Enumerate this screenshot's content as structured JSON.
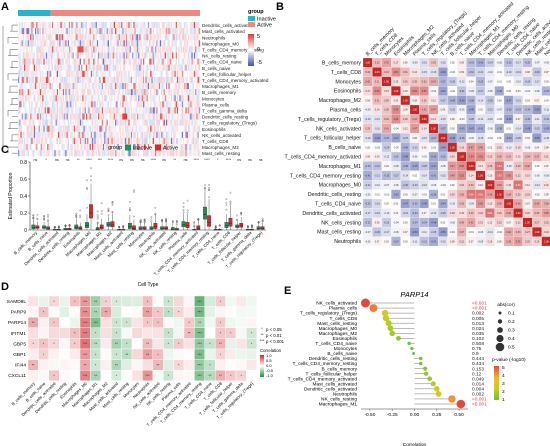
{
  "panels": {
    "A": {
      "label": "A"
    },
    "B": {
      "label": "B"
    },
    "C": {
      "label": "C"
    },
    "D": {
      "label": "D"
    },
    "E": {
      "label": "E"
    }
  },
  "chart_data": [
    {
      "panel": "A",
      "type": "heatmap",
      "title": "",
      "legend_title": "group",
      "groups": [
        {
          "name": "Inactive",
          "color": "#2bb3c9"
        },
        {
          "name": "Active",
          "color": "#ee8a80"
        }
      ],
      "group_split": 0.18,
      "colorbar_ticks": [
        5,
        0,
        -5
      ],
      "colors": {
        "high": "#e53935",
        "mid": "#ffffff",
        "low": "#3f51b5"
      },
      "rows": [
        "Dendritic_cells_activated",
        "Mast_cells_activated",
        "Neutrophils",
        "Macrophages_M0",
        "T_cells_CD4_memory_resting",
        "NK_cells_resting",
        "T_cells_CD4_naive",
        "B_cells_naive",
        "T_cells_follicular_helper",
        "T_cells_CD4_memory_activated",
        "Macrophages_M1",
        "B_cells_memory",
        "Monocytes",
        "Plasma_cells",
        "T_cells_gamma_delta",
        "Dendritic_cells_resting",
        "T_cells_regulatory_(Tregs)",
        "Eosinophils",
        "NK_cells_activated",
        "T_cells_CD8",
        "Macrophages_M2",
        "Mast_cells_resting"
      ]
    },
    {
      "panel": "B",
      "type": "heatmap",
      "title": "",
      "labels": [
        "B_cells_memory",
        "T_cells_CD8",
        "Monocytes",
        "Eosinophils",
        "Macrophages_M2",
        "Plasma_cells",
        "T_cells_regulatory_(Tregs)",
        "NK_cells_activated",
        "T_cells_follicular_helper",
        "B_cells_naive",
        "T_cells_CD4_memory_activated",
        "Macrophages_M1",
        "T_cells_CD4_memory_resting",
        "Macrophages_M0",
        "Dendritic_cells_resting",
        "T_cells_CD4_naive",
        "Dendritic_cells_activated",
        "NK_cells_resting",
        "Mast_cells_resting",
        "Neutrophils"
      ],
      "colorbar_ticks": [
        1,
        0.8,
        0.6,
        0.4,
        0.2,
        0,
        -0.2,
        -0.4,
        -0.6,
        -0.8,
        -1
      ],
      "colors": {
        "high": "#c62828",
        "mid": "#ffffff",
        "low": "#283593"
      }
    },
    {
      "panel": "C",
      "type": "box",
      "title": "",
      "xlabel": "Cell Type",
      "ylabel": "Estimated Proportion",
      "ylim": [
        0,
        0.8
      ],
      "yticks": [
        0,
        0.2,
        0.4,
        0.6,
        0.8
      ],
      "legend_title": "group",
      "series": [
        {
          "name": "Inactive",
          "color": "#1e8f5e"
        },
        {
          "name": "Active",
          "color": "#d62a2a"
        }
      ],
      "categories": [
        "B_cells_memory",
        "B_cells_naive",
        "Dendritic_cells_activated",
        "Dendritic_cells_resting",
        "Eosinophils",
        "Macrophages_M0",
        "Macrophages_M1",
        "Macrophages_M2",
        "Mast_cells_activated",
        "Mast_cells_resting",
        "Monocytes",
        "Neutrophils",
        "NK_cells_activated",
        "NK_cells_resting",
        "Plasma_cells",
        "T_cells_CD4_memory_activated",
        "T_cells_CD4_memory_resting",
        "T_cells_CD4_naive",
        "T_cells_CD8",
        "T_cells_follicular_helper",
        "T_cells_gamma_delta",
        "T_cells_regulatory_(Tregs)"
      ],
      "significance": [
        "ns",
        "*",
        "ns",
        "ns",
        "**",
        "****",
        "***",
        "****",
        "ns",
        "ns",
        "ns",
        "****",
        "ns",
        "**",
        "ns",
        "****",
        "****",
        "*",
        "****",
        "ns",
        "ns",
        "ns"
      ],
      "medians_inactive": [
        0.03,
        0.03,
        0.0,
        0.01,
        0.03,
        0.05,
        0.01,
        0.06,
        0.0,
        0.04,
        0.02,
        0.02,
        0.02,
        0.01,
        0.06,
        0.0,
        0.18,
        0.0,
        0.05,
        0.04,
        0.0,
        0.02
      ],
      "medians_active": [
        0.03,
        0.02,
        0.0,
        0.01,
        0.02,
        0.2,
        0.03,
        0.06,
        0.0,
        0.02,
        0.02,
        0.04,
        0.02,
        0.0,
        0.05,
        0.02,
        0.09,
        0.0,
        0.08,
        0.05,
        0.0,
        0.02
      ],
      "q3_inactive": [
        0.06,
        0.05,
        0.01,
        0.02,
        0.06,
        0.09,
        0.03,
        0.09,
        0.01,
        0.08,
        0.04,
        0.04,
        0.04,
        0.03,
        0.1,
        0.01,
        0.27,
        0.01,
        0.09,
        0.06,
        0.01,
        0.04
      ],
      "q3_active": [
        0.05,
        0.04,
        0.01,
        0.02,
        0.04,
        0.3,
        0.06,
        0.1,
        0.01,
        0.05,
        0.04,
        0.08,
        0.04,
        0.02,
        0.09,
        0.05,
        0.17,
        0.01,
        0.14,
        0.08,
        0.01,
        0.04
      ],
      "max_point": [
        0.2,
        0.2,
        0.05,
        0.06,
        0.25,
        0.8,
        0.32,
        0.35,
        0.05,
        0.48,
        0.13,
        0.27,
        0.14,
        0.12,
        0.42,
        0.13,
        0.55,
        0.06,
        0.45,
        0.25,
        0.06,
        0.14
      ]
    },
    {
      "panel": "D",
      "type": "heatmap",
      "title": "",
      "genes": [
        "SAMD9L",
        "PARP9",
        "PARP14",
        "IFITM1",
        "GBP5",
        "GBP1",
        "IFI44",
        "CXCL11"
      ],
      "cells": [
        "B_cells_memory",
        "B_cells_naive",
        "Dendritic_cells_activated",
        "Dendritic_cells_resting",
        "Eosinophils",
        "Macrophages_M0",
        "Macrophages_M1",
        "Macrophages_M2",
        "Mast_cells_activated",
        "Mast_cells_resting",
        "Monocytes",
        "Neutrophils",
        "NK_cells_activated",
        "NK_cells_resting",
        "Plasma_cells",
        "T_cells_CD4_memory_activated",
        "T_cells_CD4_memory_resting",
        "T_cells_CD4_naive",
        "T_cells_CD8",
        "T_cells_follicular_helper",
        "T_cells_gamma_delta",
        "T_cells_regulatory_(Tregs)"
      ],
      "pvalue_legend": [
        "p < 0.05",
        "p < 0.01",
        "p < 0.001"
      ],
      "pvalue_marks": [
        "*",
        "**",
        "***"
      ],
      "correlation_title": "Correlation",
      "correlation_ticks": [
        "1.0",
        "0.5",
        "0.0",
        "-0.5",
        "-1.0"
      ],
      "colors": {
        "high": "#d2232a",
        "mid": "#ffffff",
        "low": "#1f8f3a"
      }
    },
    {
      "panel": "E",
      "type": "scatter",
      "title": "PARP14",
      "xlabel": "Correlation",
      "xlim": [
        -0.6,
        0.6
      ],
      "xticks": [
        "-0.50",
        "-0.25",
        "0.00",
        "0.25",
        "0.50"
      ],
      "size_legend_title": "abs(cor)",
      "size_legend": [
        "0.1",
        "0.2",
        "0.3",
        "0.4",
        "0.5"
      ],
      "color_legend_title": "p-value (-log10)",
      "color_legend_ticks": [
        "5",
        "4",
        "3",
        "2",
        "1"
      ],
      "categories": [
        "NK_cells_activated",
        "Plasma_cells",
        "T_cells_regulatory_(Tregs)",
        "T_cells_CD8",
        "Mast_cells_resting",
        "Macrophages_M0",
        "Macrophages_M2",
        "Eosinophils",
        "T_cells_CD4_naive",
        "Monocytes",
        "B_cells_naive",
        "Dendritic_cells_resting",
        "T_cells_CD4_memory_resting",
        "B_cells_memory",
        "T_cells_follicular_helper",
        "T_cells_CD4_memory_activated",
        "Mast_cells_activated",
        "Dendritic_cells_activated",
        "Neutrophils",
        "NK_cells_resting",
        "Macrophages_M1"
      ],
      "pvalues": [
        "<0.001",
        "<0.001",
        "0.002",
        "0.005",
        "0.013",
        "0.024",
        "0.035",
        "0.102",
        "0.508",
        "0.75",
        "0.9",
        "0.444",
        "0.434",
        "0.153",
        "0.12",
        "0.049",
        "0.014",
        "0.004",
        "0.002",
        "<0.001",
        "<0.001"
      ],
      "correlation": [
        -0.55,
        -0.46,
        -0.33,
        -0.32,
        -0.29,
        -0.27,
        -0.25,
        -0.18,
        -0.06,
        -0.03,
        -0.01,
        0.07,
        0.07,
        0.12,
        0.13,
        0.17,
        0.21,
        0.25,
        0.27,
        0.42,
        0.52
      ],
      "neglog10p": [
        5.3,
        4.5,
        2.7,
        2.3,
        1.9,
        1.6,
        1.5,
        1.0,
        0.3,
        0.1,
        0.05,
        0.35,
        0.36,
        0.8,
        0.9,
        1.3,
        1.85,
        2.4,
        2.7,
        4.2,
        5.3
      ]
    }
  ]
}
